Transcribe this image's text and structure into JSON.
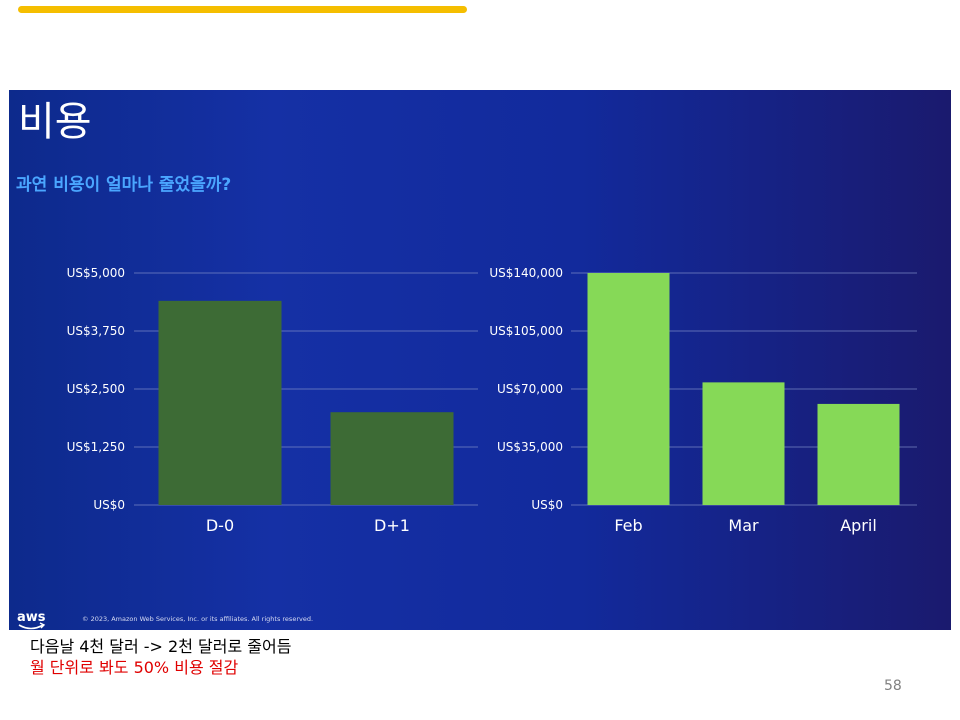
{
  "slide": {
    "title": "비용",
    "subtitle": "과연 비용이 얼마나 줄었을까?",
    "footer": "© 2023, Amazon Web Services, Inc. or its affiliates. All rights reserved.",
    "logo_text": "aws"
  },
  "notes": {
    "line1": "다음날 4천 달러 -> 2천 달러로 줄어듬",
    "line2": "월 단위로 봐도 50% 비용 절감"
  },
  "page_number": "58",
  "colors": {
    "accent_bar": "#f5be00",
    "left_bars": "#3d6b35",
    "right_bars": "#86d957",
    "subtitle": "#4aa6ff",
    "note_emphasis": "#e00000"
  },
  "chart_data": [
    {
      "type": "bar",
      "categories": [
        "D-0",
        "D+1"
      ],
      "values": [
        4400,
        2000
      ],
      "ylim": [
        0,
        5000
      ],
      "yticks": [
        0,
        1250,
        2500,
        3750,
        5000
      ],
      "ytick_labels": [
        "US$0",
        "US$1,250",
        "US$2,500",
        "US$3,750",
        "US$5,000"
      ],
      "grid": true,
      "xlabel": "",
      "ylabel": ""
    },
    {
      "type": "bar",
      "categories": [
        "Feb",
        "Mar",
        "April"
      ],
      "values": [
        140000,
        74000,
        61000
      ],
      "ylim": [
        0,
        140000
      ],
      "yticks": [
        0,
        35000,
        70000,
        105000,
        140000
      ],
      "ytick_labels": [
        "US$0",
        "US$35,000",
        "US$70,000",
        "US$105,000",
        "US$140,000"
      ],
      "grid": true,
      "xlabel": "",
      "ylabel": ""
    }
  ]
}
